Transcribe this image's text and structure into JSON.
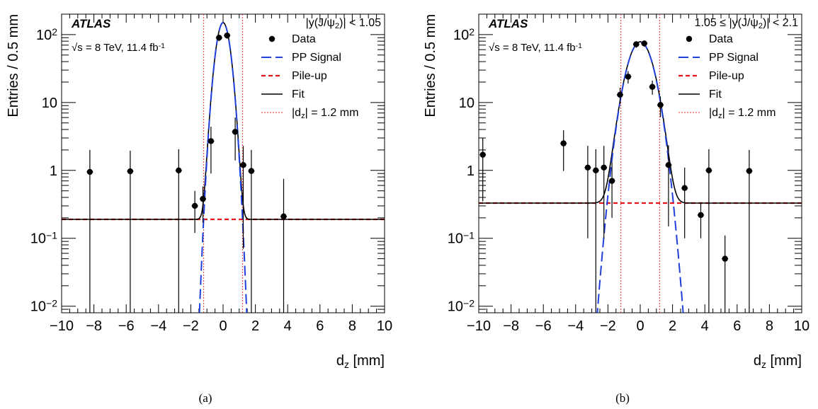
{
  "chart_data": [
    {
      "type": "scatter",
      "panel_label": "(a)",
      "experiment": "ATLAS",
      "energy_text": "√s = 8 TeV, 11.4 fb",
      "energy_sup": "-1",
      "region_label": "|y(J/ψ",
      "region_sub": "2",
      "region_suffix": ")| < 1.05",
      "xlabel": "d",
      "xlabel_sub": "z",
      "xlabel_unit": " [mm]",
      "ylabel": "Entries / 0.5 mm",
      "xlim": [
        -10,
        10
      ],
      "ylim": [
        0.008,
        200
      ],
      "yscale": "log",
      "xticks": [
        -10,
        -8,
        -6,
        -4,
        -2,
        0,
        2,
        4,
        6,
        8,
        10
      ],
      "xtick_labels": [
        "−10",
        "−8",
        "−6",
        "−4",
        "−2",
        "0",
        "2",
        "4",
        "6",
        "8",
        "10"
      ],
      "yticks": [
        0.01,
        0.1,
        1,
        10,
        100
      ],
      "ytick_labels": [
        {
          "base": "10",
          "exp": "−2"
        },
        {
          "base": "10",
          "exp": "−1"
        },
        {
          "base": "1",
          "exp": ""
        },
        {
          "base": "10",
          "exp": ""
        },
        {
          "base": "10",
          "exp": "2"
        }
      ],
      "cut_lines": [
        -1.2,
        1.2
      ],
      "data": {
        "name": "Data",
        "x": [
          -8.25,
          -5.75,
          -2.75,
          -1.75,
          -1.25,
          -0.75,
          -0.25,
          0.25,
          0.75,
          1.25,
          1.75,
          3.75
        ],
        "y": [
          0.95,
          0.97,
          1.0,
          0.3,
          0.38,
          2.7,
          90,
          97,
          3.7,
          1.2,
          0.98,
          0.21
        ],
        "y_low": [
          0.008,
          0.008,
          0.008,
          0.12,
          0.17,
          0.9,
          80,
          87,
          1.4,
          0.07,
          0.008,
          0.008
        ],
        "y_high": [
          2.0,
          1.95,
          2.05,
          0.5,
          0.58,
          4.4,
          100,
          107,
          6.0,
          2.3,
          2.0,
          0.75
        ]
      },
      "signal": {
        "name": "PP Signal",
        "amplitude": 150,
        "sigma": 0.33
      },
      "pileup": {
        "name": "Pile-up",
        "level": 0.19
      },
      "fit": {
        "name": "Fit"
      },
      "cut": {
        "name": "|d",
        "sub": "z",
        "suffix": "| = 1.2 mm"
      }
    },
    {
      "type": "scatter",
      "panel_label": "(b)",
      "experiment": "ATLAS",
      "energy_text": "√s = 8 TeV, 11.4 fb",
      "energy_sup": "-1",
      "region_label": "1.05 ≤ |y(J/ψ",
      "region_sub": "2",
      "region_suffix": ")| < 2.1",
      "xlabel": "d",
      "xlabel_sub": "z",
      "xlabel_unit": " [mm]",
      "ylabel": "Entries / 0.5 mm",
      "xlim": [
        -10,
        10
      ],
      "ylim": [
        0.008,
        200
      ],
      "yscale": "log",
      "xticks": [
        -10,
        -8,
        -6,
        -4,
        -2,
        0,
        2,
        4,
        6,
        8,
        10
      ],
      "xtick_labels": [
        "−10",
        "−8",
        "−6",
        "−4",
        "−2",
        "0",
        "2",
        "4",
        "6",
        "8",
        "10"
      ],
      "yticks": [
        0.01,
        0.1,
        1,
        10,
        100
      ],
      "ytick_labels": [
        {
          "base": "10",
          "exp": "−2"
        },
        {
          "base": "10",
          "exp": "−1"
        },
        {
          "base": "1",
          "exp": ""
        },
        {
          "base": "10",
          "exp": ""
        },
        {
          "base": "10",
          "exp": "2"
        }
      ],
      "cut_lines": [
        -1.2,
        1.2
      ],
      "data": {
        "name": "Data",
        "x": [
          -9.75,
          -4.75,
          -3.25,
          -2.75,
          -2.25,
          -1.75,
          -1.25,
          -0.75,
          -0.25,
          0.25,
          0.75,
          1.25,
          1.75,
          2.75,
          3.75,
          4.25,
          5.25,
          6.75
        ],
        "y": [
          1.7,
          2.5,
          1.1,
          1.0,
          1.1,
          0.7,
          13,
          24,
          72,
          74,
          17,
          9.2,
          1.2,
          0.55,
          0.22,
          1.0,
          0.05,
          0.98
        ],
        "y_low": [
          0.35,
          0.98,
          0.1,
          0.008,
          0.1,
          0.2,
          9.5,
          19,
          64,
          66,
          13,
          6.1,
          0.15,
          0.1,
          0.1,
          0.008,
          0.008,
          0.008
        ],
        "y_high": [
          3.0,
          3.9,
          2.3,
          2.05,
          2.3,
          1.3,
          16.5,
          29,
          80,
          82,
          21,
          12.2,
          2.35,
          1.1,
          0.34,
          2.05,
          0.11,
          2.0
        ]
      },
      "signal": {
        "name": "PP Signal",
        "amplitude": 78,
        "sigma": 0.62
      },
      "pileup": {
        "name": "Pile-up",
        "level": 0.33
      },
      "fit": {
        "name": "Fit"
      },
      "cut": {
        "name": "|d",
        "sub": "z",
        "suffix": "| = 1.2 mm"
      }
    }
  ]
}
